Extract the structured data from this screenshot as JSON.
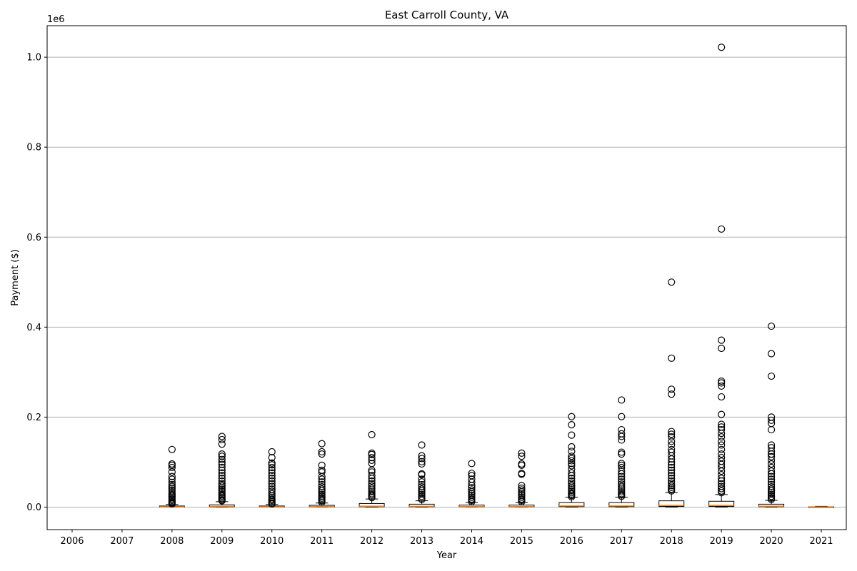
{
  "chart_data": {
    "type": "boxplot",
    "title": "East Carroll County, VA",
    "xlabel": "Year",
    "ylabel": "Payment ($)",
    "y_offset_label": "1e6",
    "y_ticks": [
      0.0,
      0.2,
      0.4,
      0.6,
      0.8,
      1.0
    ],
    "y_tick_labels": [
      "0.0",
      "0.2",
      "0.4",
      "0.6",
      "0.8",
      "1.0"
    ],
    "ylim": [
      -50000,
      1070000
    ],
    "grid": "y",
    "categories": [
      "2006",
      "2007",
      "2008",
      "2009",
      "2010",
      "2011",
      "2012",
      "2013",
      "2014",
      "2015",
      "2016",
      "2017",
      "2018",
      "2019",
      "2020",
      "2021"
    ],
    "colors": {
      "box": "#000000",
      "median": "#ff7f0e",
      "grid": "#b0b0b0",
      "outlier": "#000000"
    },
    "boxes": [
      null,
      null,
      {
        "whislo": 0,
        "q1": 200,
        "med": 800,
        "q3": 2500,
        "whishi": 6000,
        "fliers": [
          128000,
          96000,
          93000,
          88000,
          78000,
          68000,
          62000,
          55000,
          50000,
          46000,
          42000,
          38000,
          34000,
          30000,
          27000,
          24000,
          21000,
          18000,
          15000,
          12000,
          10000,
          8000,
          7000
        ]
      },
      {
        "whislo": 0,
        "q1": 500,
        "med": 1500,
        "q3": 5000,
        "whishi": 12000,
        "fliers": [
          157000,
          150000,
          140000,
          118000,
          113000,
          106000,
          100000,
          95000,
          88000,
          82000,
          76000,
          70000,
          64000,
          58000,
          52000,
          48000,
          44000,
          40000,
          36000,
          32000,
          28000,
          25000,
          22000,
          19000,
          16000,
          14000
        ]
      },
      {
        "whislo": 0,
        "q1": 200,
        "med": 800,
        "q3": 2500,
        "whishi": 6000,
        "fliers": [
          123000,
          110000,
          98000,
          94000,
          88000,
          82000,
          76000,
          70000,
          64000,
          58000,
          52000,
          46000,
          40000,
          35000,
          30000,
          26000,
          22000,
          18000,
          15000,
          12000,
          9000,
          7000
        ]
      },
      {
        "whislo": 0,
        "q1": 400,
        "med": 1200,
        "q3": 4000,
        "whishi": 9000,
        "fliers": [
          141000,
          123000,
          118000,
          93000,
          82000,
          78000,
          68000,
          62000,
          56000,
          50000,
          45000,
          40000,
          36000,
          32000,
          28000,
          24000,
          20000,
          17000,
          14000,
          11000
        ]
      },
      {
        "whislo": 0,
        "q1": 800,
        "med": 2000,
        "q3": 8000,
        "whishi": 18000,
        "fliers": [
          161000,
          120000,
          117000,
          110000,
          104000,
          97000,
          82000,
          78000,
          70000,
          64000,
          58000,
          52000,
          47000,
          42000,
          38000,
          34000,
          30000,
          27000,
          24000,
          21000
        ]
      },
      {
        "whislo": 0,
        "q1": 600,
        "med": 1800,
        "q3": 6500,
        "whishi": 14000,
        "fliers": [
          138000,
          114000,
          108000,
          101000,
          96000,
          74000,
          72000,
          62000,
          56000,
          50000,
          45000,
          40000,
          36000,
          32000,
          28000,
          24000,
          20000,
          17000
        ]
      },
      {
        "whislo": 0,
        "q1": 400,
        "med": 1200,
        "q3": 4500,
        "whishi": 10000,
        "fliers": [
          97000,
          75000,
          70000,
          62000,
          55000,
          48000,
          43000,
          38000,
          34000,
          30000,
          26000,
          22000,
          18000,
          15000,
          12000
        ]
      },
      {
        "whislo": 0,
        "q1": 400,
        "med": 1200,
        "q3": 4500,
        "whishi": 10000,
        "fliers": [
          120000,
          113000,
          96000,
          93000,
          75000,
          73000,
          48000,
          42000,
          38000,
          34000,
          30000,
          26000,
          22000,
          18000,
          15000,
          12000
        ]
      },
      {
        "whislo": 0,
        "q1": 1000,
        "med": 2500,
        "q3": 10000,
        "whishi": 22000,
        "fliers": [
          201000,
          183000,
          160000,
          134000,
          124000,
          113000,
          108000,
          103000,
          97000,
          92000,
          84000,
          76000,
          70000,
          64000,
          58000,
          53000,
          48000,
          44000,
          40000,
          36000,
          32000,
          29000,
          26000,
          23000
        ]
      },
      {
        "whislo": 0,
        "q1": 1000,
        "med": 2500,
        "q3": 10000,
        "whishi": 22000,
        "fliers": [
          238000,
          201000,
          172000,
          163000,
          157000,
          149000,
          122000,
          118000,
          97000,
          93000,
          88000,
          80000,
          74000,
          68000,
          62000,
          56000,
          51000,
          46000,
          42000,
          38000,
          34000,
          30000,
          27000,
          24000
        ]
      },
      {
        "whislo": 0,
        "q1": 1500,
        "med": 3500,
        "q3": 14000,
        "whishi": 32000,
        "fliers": [
          500000,
          331000,
          262000,
          251000,
          168000,
          162000,
          156000,
          146000,
          138000,
          128000,
          122000,
          114000,
          107000,
          100000,
          94000,
          88000,
          82000,
          76000,
          70000,
          64000,
          58000,
          53000,
          48000,
          44000,
          40000,
          36000
        ]
      },
      {
        "whislo": 0,
        "q1": 1500,
        "med": 3500,
        "q3": 13000,
        "whishi": 28000,
        "fliers": [
          1022000,
          618000,
          371000,
          353000,
          280000,
          276000,
          269000,
          245000,
          206000,
          184000,
          178000,
          172000,
          164000,
          156000,
          146000,
          138000,
          128000,
          118000,
          110000,
          102000,
          95000,
          88000,
          80000,
          72000,
          64000,
          58000,
          52000,
          46000,
          41000,
          36000,
          32000
        ]
      },
      {
        "whislo": 0,
        "q1": 800,
        "med": 2000,
        "q3": 6500,
        "whishi": 15000,
        "fliers": [
          402000,
          341000,
          291000,
          200000,
          193000,
          186000,
          172000,
          138000,
          132000,
          124000,
          118000,
          112000,
          104000,
          96000,
          88000,
          80000,
          74000,
          68000,
          62000,
          56000,
          50000,
          45000,
          40000,
          36000,
          32000,
          28000,
          24000,
          20000,
          17000
        ]
      },
      {
        "whislo": 0,
        "q1": 100,
        "med": 300,
        "q3": 900,
        "whishi": 1800,
        "fliers": []
      }
    ]
  }
}
